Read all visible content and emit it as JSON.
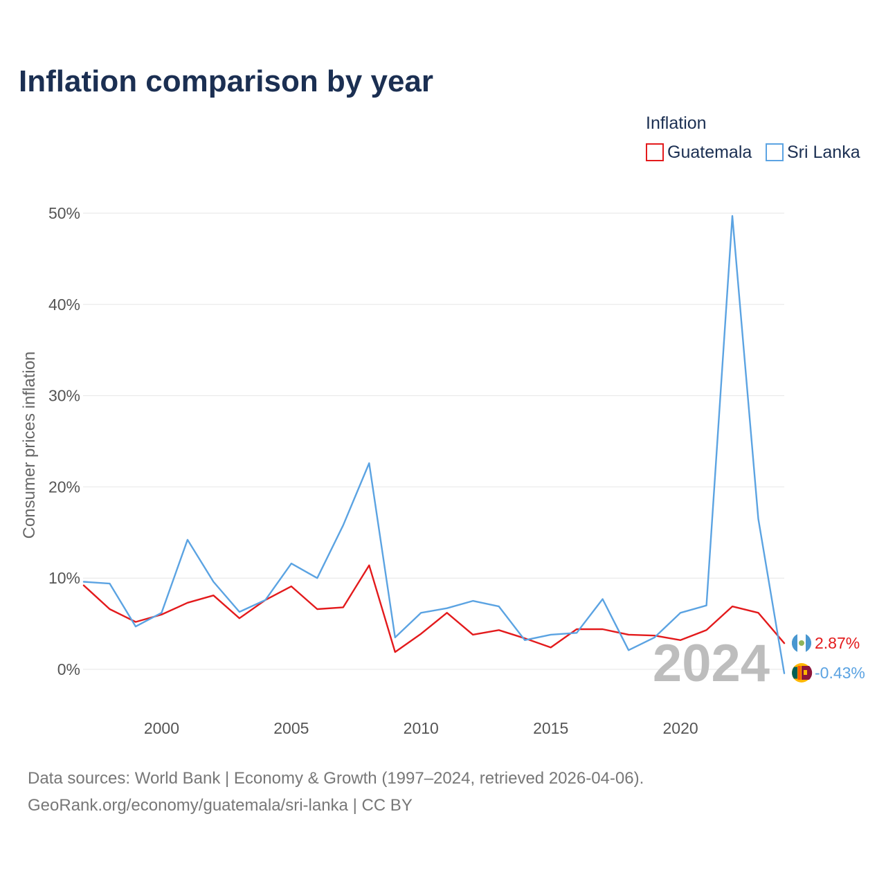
{
  "title": "Inflation comparison by year",
  "legend": {
    "title": "Inflation",
    "entries": [
      {
        "name": "Guatemala",
        "color": "#e31a1c"
      },
      {
        "name": "Sri Lanka",
        "color": "#5ba3e2"
      }
    ]
  },
  "footer": {
    "line1": "Data sources: World Bank | Economy & Growth (1997–2024, retrieved 2026-04-06).",
    "line2": "GeoRank.org/economy/guatemala/sri-lanka | CC BY"
  },
  "chart_data": {
    "type": "line",
    "title": "Inflation comparison by year",
    "xlabel": "",
    "ylabel": "Consumer prices inflation",
    "xlim": [
      1997,
      2024
    ],
    "ylim": [
      -3,
      50
    ],
    "x": [
      1997,
      1998,
      1999,
      2000,
      2001,
      2002,
      2003,
      2004,
      2005,
      2006,
      2007,
      2008,
      2009,
      2010,
      2011,
      2012,
      2013,
      2014,
      2015,
      2016,
      2017,
      2018,
      2019,
      2020,
      2021,
      2022,
      2023,
      2024
    ],
    "x_ticks": [
      2000,
      2005,
      2010,
      2015,
      2020
    ],
    "x_tick_labels": [
      "2000",
      "2005",
      "2010",
      "2015",
      "2020"
    ],
    "y_ticks": [
      0,
      10,
      20,
      30,
      40,
      50
    ],
    "y_tick_labels": [
      "0%",
      "10%",
      "20%",
      "30%",
      "40%",
      "50%"
    ],
    "grid": true,
    "legend_position": "top-right",
    "current_year_label": "2024",
    "series": [
      {
        "name": "Guatemala",
        "color": "#e31a1c",
        "values": [
          9.2,
          6.6,
          5.2,
          6.0,
          7.3,
          8.1,
          5.6,
          7.6,
          9.1,
          6.6,
          6.8,
          11.4,
          1.9,
          3.9,
          6.2,
          3.8,
          4.3,
          3.4,
          2.4,
          4.4,
          4.4,
          3.8,
          3.7,
          3.2,
          4.3,
          6.9,
          6.2,
          2.87
        ],
        "end_label": "2.87%"
      },
      {
        "name": "Sri Lanka",
        "color": "#5ba3e2",
        "values": [
          9.6,
          9.4,
          4.7,
          6.2,
          14.2,
          9.6,
          6.3,
          7.6,
          11.6,
          10.0,
          15.8,
          22.6,
          3.5,
          6.2,
          6.7,
          7.5,
          6.9,
          3.2,
          3.8,
          4.0,
          7.7,
          2.1,
          3.5,
          6.2,
          7.0,
          49.7,
          16.5,
          -0.43
        ],
        "end_label": "-0.43%"
      }
    ]
  }
}
